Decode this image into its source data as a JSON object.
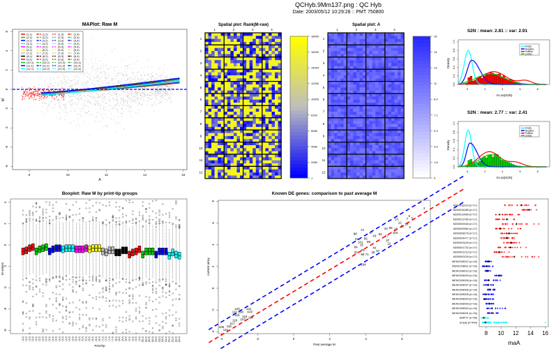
{
  "header": {
    "title": "QCHyb.9Mm137.png : QC Hyb",
    "subtitle": "Date:  2003/05/12 10:29:28  ::  PMT 750800"
  },
  "chart_data": [
    {
      "type": "scatter",
      "title": "MAPlot: Raw M",
      "xlabel": "A",
      "ylabel": "M",
      "xlim": [
        7.2,
        16.3
      ],
      "ylim": [
        -8.6,
        6.6
      ],
      "xticks": [
        "8",
        "10",
        "12",
        "14",
        "16"
      ],
      "yticks": [
        "6",
        "4",
        "2",
        "0",
        "-2",
        "-4",
        "-6",
        "-8"
      ],
      "reference_line_M": 0,
      "legend": {
        "position": "top-left",
        "row_colors": [
          "#ff0000",
          "#00cc00",
          "#0000ff",
          "#00ffff",
          "#ff00ff",
          "#ffff00",
          "#bebebe",
          "#000000",
          "#ff0000",
          "#00cc00",
          "#0000ff",
          "#00ffff"
        ],
        "labels": [
          [
            "(1,1)",
            "(1,2)",
            "(1,3)",
            "(1,4)"
          ],
          [
            "(2,1)",
            "(2,2)",
            "(2,3)",
            "(2,4)"
          ],
          [
            "(3,1)",
            "(3,2)",
            "(3,3)",
            "(3,4)"
          ],
          [
            "(4,1)",
            "(4,2)",
            "(4,3)",
            "(4,4)"
          ],
          [
            "(5,1)",
            "(5,2)",
            "(5,3)",
            "(5,4)"
          ],
          [
            "(6,1)",
            "(6,2)",
            "(6,3)",
            "(6,4)"
          ],
          [
            "(7,1)",
            "(7,2)",
            "(7,3)",
            "(7,4)"
          ],
          [
            "(8,1)",
            "(8,2)",
            "(8,3)",
            "(8,4)"
          ],
          [
            "(9,1)",
            "(9,2)",
            "(9,3)",
            "(9,4)"
          ],
          [
            "(10,1)",
            "(10,2)",
            "(10,3)",
            "(10,4)"
          ],
          [
            "(11,1)",
            "(11,2)",
            "(11,3)",
            "(11,4)"
          ],
          [
            "(12,1)",
            "(12,2)",
            "(12,3)",
            "(12,4)"
          ]
        ]
      }
    },
    {
      "type": "heatmap",
      "title": "Spatial plot: Rank(M-raw)",
      "col_labels": [
        "1",
        "2",
        "3",
        "4"
      ],
      "row_labels": [
        "1",
        "2",
        "3",
        "4",
        "5",
        "6",
        "7",
        "8",
        "9",
        "10",
        "11",
        "12"
      ],
      "colorbar_ticks": [
        "18000",
        "16000",
        "14000",
        "12000",
        "10000",
        "8100",
        "6080",
        "4080",
        "2080",
        "1"
      ],
      "colors": {
        "low": "#0000ff",
        "mid": "#bebebe",
        "high": "#ffff00"
      }
    },
    {
      "type": "heatmap",
      "title": "Spatial plot: A",
      "col_labels": [
        "1",
        "2",
        "3",
        "4"
      ],
      "row_labels": [
        "1",
        "2",
        "3",
        "4",
        "5",
        "6",
        "7",
        "8",
        "9",
        "10",
        "11",
        "12"
      ],
      "colorbar_ticks": [
        "16",
        "14",
        "13",
        "11",
        "8.9",
        "7.1",
        "5.3",
        "3.6",
        "1.8",
        "0"
      ],
      "colors": {
        "low": "#ffffff",
        "high": "#0000ff"
      }
    },
    {
      "type": "line",
      "title": "S2N : mean: 2.81 :: var: 2.91",
      "xlabel": "rm.sa(S2N)",
      "ylabel": "Density",
      "xticks": [
        "0",
        "2",
        "4",
        "6",
        "8"
      ],
      "yticks": [
        "0.0",
        "0.2",
        "0.4",
        "0.6",
        "0.8",
        "1.0"
      ],
      "histogram_color": "#ff0000",
      "legend": {
        "position": "top-right",
        "entries": [
          "Empty",
          "Negative",
          "Positive",
          "probes"
        ],
        "colors": [
          "#00ffff",
          "#0000ff",
          "#ff0000",
          "#00cc00"
        ]
      }
    },
    {
      "type": "line",
      "title": "S2N : mean: 2.77 :: var: 2.41",
      "xlabel": "rm.sa(S2N)",
      "ylabel": "Density",
      "xticks": [
        "0",
        "2",
        "4",
        "6",
        "8"
      ],
      "yticks": [
        "0.0",
        "0.2",
        "0.4",
        "0.6",
        "0.8",
        "1.0"
      ],
      "histogram_color": "#00cc00",
      "legend": {
        "position": "top-right",
        "entries": [
          "Empty",
          "Negative",
          "Positive",
          "probes"
        ],
        "colors": [
          "#00ffff",
          "#0000ff",
          "#ff0000",
          "#00cc00"
        ]
      }
    },
    {
      "type": "box",
      "title": "Boxplot: Raw M by print-tip groups",
      "xlabel": "PrintTip",
      "ylabel": "M values",
      "yticks": [
        "4",
        "2",
        "0",
        "-2",
        "-4",
        "-6",
        "-8"
      ],
      "group_colors": [
        "#ff0000",
        "#00cc00",
        "#0000ff",
        "#00ffff",
        "#ff00ff",
        "#ffff00",
        "#bebebe",
        "#000000",
        "#ff0000",
        "#00cc00",
        "#0000ff",
        "#00ffff"
      ],
      "categories": [
        "(1,1)",
        "(1,2)",
        "(1,3)",
        "(1,4)",
        "(2,1)",
        "(2,2)",
        "(2,3)",
        "(2,4)",
        "(3,1)",
        "(3,2)",
        "(3,3)",
        "(3,4)",
        "(4,1)",
        "(4,2)",
        "(4,3)",
        "(4,4)",
        "(5,1)",
        "(5,2)",
        "(5,3)",
        "(5,4)",
        "(6,1)",
        "(6,2)",
        "(6,3)",
        "(6,4)",
        "(7,1)",
        "(7,2)",
        "(7,3)",
        "(7,4)",
        "(8,1)",
        "(8,2)",
        "(8,3)",
        "(8,4)",
        "(9,1)",
        "(9,2)",
        "(9,3)",
        "(9,4)",
        "(10,1)",
        "(10,2)",
        "(10,3)",
        "(10,4)",
        "(11,1)",
        "(11,2)",
        "(11,3)",
        "(11,4)",
        "(12,1)",
        "(12,2)",
        "(12,3)",
        "(12,4)"
      ],
      "medians": [
        -0.6,
        -0.5,
        -0.3,
        -0.2,
        -0.6,
        -0.4,
        -0.3,
        -0.2,
        -0.6,
        -0.4,
        -0.3,
        -0.3,
        -0.4,
        -0.3,
        -0.3,
        -0.3,
        -0.4,
        -0.4,
        -0.4,
        -0.3,
        -0.4,
        -0.3,
        -0.3,
        -0.3,
        -0.6,
        -0.7,
        -0.5,
        -0.5,
        -0.7,
        -0.7,
        -0.5,
        -0.5,
        -0.9,
        -0.7,
        -0.6,
        -0.4,
        -0.9,
        -0.6,
        -0.6,
        -0.6,
        -0.9,
        -0.6,
        -0.6,
        -0.6,
        -1.0,
        -0.7,
        -0.9,
        -1.0
      ]
    },
    {
      "type": "scatter",
      "title": "Known DE genes: comparison to past average M",
      "xlabel": "Past average M",
      "ylabel": "current array",
      "xticks": [
        "-4",
        "-2",
        "0",
        "2",
        "4",
        "6"
      ],
      "yticks": [
        "8",
        "6",
        "4",
        "2",
        "0",
        "-2",
        "-4"
      ],
      "points": [
        {
          "label": "2",
          "x": 7.23,
          "y": 7.35
        },
        {
          "label": "13",
          "x": 5.69,
          "y": 6.35
        },
        {
          "label": "6",
          "x": 6.4,
          "y": 6.65
        },
        {
          "label": "4",
          "x": 6.55,
          "y": 6.43
        },
        {
          "label": "7",
          "x": 6.29,
          "y": 6.37
        },
        {
          "label": "12",
          "x": 5.88,
          "y": 6.03
        },
        {
          "label": "11",
          "x": 6.03,
          "y": 5.69
        },
        {
          "label": "10",
          "x": 6.23,
          "y": 5.9
        },
        {
          "label": "5",
          "x": 6.44,
          "y": 5.6
        },
        {
          "label": "72",
          "x": 3.8,
          "y": 5.34
        },
        {
          "label": "98",
          "x": 3.41,
          "y": 5.0
        },
        {
          "label": "47",
          "x": 4.27,
          "y": 5.06
        },
        {
          "label": "104",
          "x": 5.62,
          "y": 5.1
        },
        {
          "label": "33",
          "x": 5.11,
          "y": 5.47
        },
        {
          "label": "58",
          "x": 5.37,
          "y": 5.54
        },
        {
          "label": "17",
          "x": 5.65,
          "y": 5.46
        },
        {
          "label": "52",
          "x": 4.79,
          "y": 4.96
        },
        {
          "label": "43",
          "x": 4.47,
          "y": 4.83
        },
        {
          "label": "61",
          "x": 3.5,
          "y": 4.47
        },
        {
          "label": "85",
          "x": 3.99,
          "y": 4.53
        },
        {
          "label": "27",
          "x": 5.15,
          "y": 4.8
        },
        {
          "label": "37",
          "x": 5.2,
          "y": 4.4
        },
        {
          "label": "22",
          "x": 5.28,
          "y": 4.09
        },
        {
          "label": "84",
          "x": 3.44,
          "y": 3.78
        },
        {
          "label": "75",
          "x": 3.83,
          "y": 3.5
        },
        {
          "label": "44",
          "x": 4.47,
          "y": 3.7
        },
        {
          "label": "57",
          "x": 4.66,
          "y": 3.44
        },
        {
          "label": "35",
          "x": 4.4,
          "y": 3.3
        },
        {
          "label": "23",
          "x": 3.44,
          "y": 3.3
        },
        {
          "label": "88",
          "x": 3.83,
          "y": 3.1
        },
        {
          "label": "71",
          "x": 4.05,
          "y": 3.1
        },
        {
          "label": "194",
          "x": 3.85,
          "y": 2.18
        },
        {
          "label": "15",
          "x": 3.76,
          "y": 4.1
        },
        {
          "label": "101",
          "x": 3.7,
          "y": 4.15
        },
        {
          "label": "89",
          "x": 4.15,
          "y": 4.3
        },
        {
          "label": "120",
          "x": -3.13,
          "y": -1.94
        },
        {
          "label": "121",
          "x": -2.48,
          "y": -1.88
        },
        {
          "label": "113",
          "x": -3.26,
          "y": -2.15
        },
        {
          "label": "116",
          "x": -3.13,
          "y": -2.41
        },
        {
          "label": "108",
          "x": -2.94,
          "y": -2.2
        },
        {
          "label": "122",
          "x": -2.42,
          "y": -2.15
        },
        {
          "label": "119",
          "x": -2.68,
          "y": -2.65
        },
        {
          "label": "107",
          "x": -2.81,
          "y": -2.8
        },
        {
          "label": "118",
          "x": -3.26,
          "y": -3.06
        },
        {
          "label": "117",
          "x": -3.4,
          "y": -3.23
        },
        {
          "label": "115",
          "x": -3.58,
          "y": -3.38
        },
        {
          "label": "106",
          "x": -4.0,
          "y": -3.6
        },
        {
          "label": "110",
          "x": -3.77,
          "y": -3.77
        },
        {
          "label": "114",
          "x": -2.42,
          "y": -2.7
        }
      ],
      "lines": [
        {
          "kind": "identity",
          "color": "#ff0000",
          "offset": -0.3
        },
        {
          "kind": "upper",
          "color": "#0000ff",
          "offset": 0.9
        },
        {
          "kind": "lower",
          "color": "#0000ff",
          "offset": -1.5
        }
      ]
    },
    {
      "type": "scatter",
      "xlabel": "maA",
      "xticks": [
        "8",
        "10",
        "12",
        "14",
        "16"
      ],
      "rows": [
        {
          "label": "M200016219 (n=17)",
          "min": 10.5,
          "max": 14.7,
          "median": 12.8,
          "color": "#ff0000"
        },
        {
          "label": "M200016285 (n=17)",
          "min": 12.9,
          "max": 14.8,
          "median": 13.8,
          "color": "#ff0000"
        },
        {
          "label": "M200013469 (n=17)",
          "min": 9.3,
          "max": 12.5,
          "median": 9.8,
          "color": "#ff0000"
        },
        {
          "label": "M200013780 (n=17)",
          "min": 9.3,
          "max": 11.8,
          "median": 10.8,
          "color": "#ff0000"
        },
        {
          "label": "M200009346 (n=17)",
          "min": 10.2,
          "max": 15.1,
          "median": 12.1,
          "color": "#ff0000"
        },
        {
          "label": "M200009560 (n=17)",
          "min": 9.3,
          "max": 12.7,
          "median": 9.9,
          "color": "#ff0000"
        },
        {
          "label": "M200008276 (n=17)",
          "min": 10.0,
          "max": 12.2,
          "median": 11.1,
          "color": "#ff0000"
        },
        {
          "label": "M200004477 (n=17)",
          "min": 10.0,
          "max": 11.8,
          "median": 10.8,
          "color": "#ff0000"
        },
        {
          "label": "M200003425 (n=17)",
          "min": 10.4,
          "max": 12.5,
          "median": 11.4,
          "color": "#ff0000"
        },
        {
          "label": "M200001732 (n=17)",
          "min": 9.6,
          "max": 13.4,
          "median": 11.3,
          "color": "#ff0000"
        },
        {
          "label": "M200001219 (n=17)",
          "min": 9.1,
          "max": 11.1,
          "median": 9.8,
          "color": "#ff0000"
        },
        {
          "label": "M200000239 (n=17)",
          "min": 10.2,
          "max": 15.1,
          "median": 11.8,
          "color": "#ff0000"
        },
        {
          "label": "MENC008012 (n=16)",
          "min": 7.9,
          "max": 8.7,
          "median": 8.3,
          "color": "#0000ff"
        },
        {
          "label": "MENC008011 (n=16)",
          "min": 7.5,
          "max": 8.9,
          "median": 8.0,
          "color": "#0000ff"
        },
        {
          "label": "MENC008010 (n=16)",
          "min": 7.9,
          "max": 8.6,
          "median": 8.1,
          "color": "#0000ff"
        },
        {
          "label": "MENC008009 (n=16)",
          "min": 9.2,
          "max": 10.1,
          "median": 9.7,
          "color": "#0000ff"
        },
        {
          "label": "MENC008008 (n=16)",
          "min": 7.8,
          "max": 9.9,
          "median": 8.3,
          "color": "#0000ff"
        },
        {
          "label": "MENC008007 (n=16)",
          "min": 7.7,
          "max": 9.0,
          "median": 8.3,
          "color": "#0000ff"
        },
        {
          "label": "MENC008006 (n=16)",
          "min": 8.2,
          "max": 9.2,
          "median": 8.5,
          "color": "#0000ff"
        },
        {
          "label": "MENC008005 (n=16)",
          "min": 7.6,
          "max": 9.0,
          "median": 8.0,
          "color": "#0000ff"
        },
        {
          "label": "MENC008004 (n=16)",
          "min": 7.7,
          "max": 9.0,
          "median": 7.8,
          "color": "#0000ff"
        },
        {
          "label": "MENC008003 (n=16)",
          "min": 8.0,
          "max": 9.0,
          "median": 8.4,
          "color": "#0000ff"
        },
        {
          "label": "MENC008002 (n=16)",
          "min": 8.1,
          "max": 10.6,
          "median": 8.8,
          "color": "#0000ff"
        },
        {
          "label": "MENC008001 (n=16)",
          "min": 8.2,
          "max": 9.6,
          "median": 8.8,
          "color": "#0000ff"
        },
        {
          "label": "EMPTY (n=96)",
          "min": 7.4,
          "max": 8.3,
          "median": 7.7,
          "color": "#00ffff"
        },
        {
          "label": "Empty (n=444)",
          "min": 7.5,
          "max": 10.8,
          "median": 7.9,
          "color": "#00ffff",
          "outlier": 16.0
        }
      ]
    }
  ]
}
